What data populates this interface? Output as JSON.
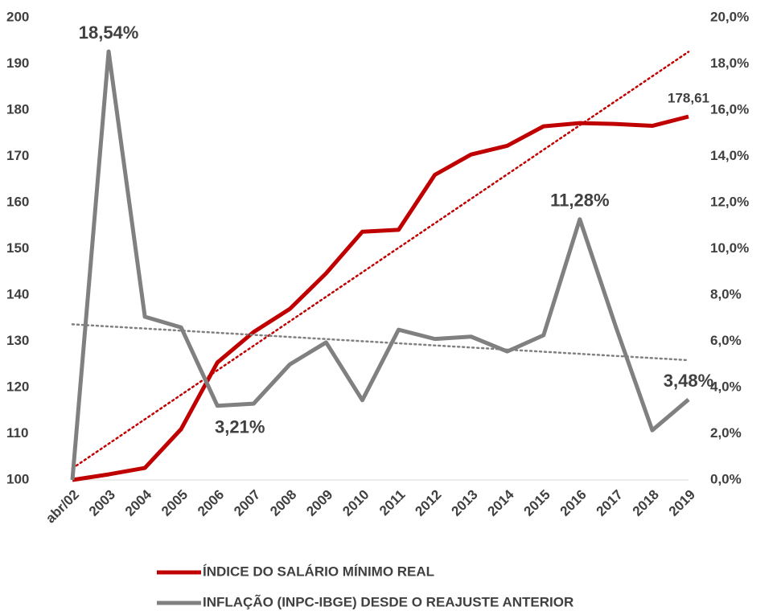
{
  "chart_data": {
    "type": "line",
    "categories": [
      "abr/02",
      "2003",
      "2004",
      "2005",
      "2006",
      "2007",
      "2008",
      "2009",
      "2010",
      "2011",
      "2012",
      "2013",
      "2014",
      "2015",
      "2016",
      "2017",
      "2018",
      "2019"
    ],
    "series": [
      {
        "name": "ÍNDICE DO SALÁRIO MÍNIMO REAL",
        "color": "#c00000",
        "trendline": true,
        "values": [
          100,
          101.2,
          102.6,
          111,
          125.4,
          132,
          137,
          144.7,
          153.7,
          154.1,
          166,
          170.4,
          172.3,
          176.5,
          177.2,
          177,
          176.6,
          178.61
        ],
        "value_labels": [
          null,
          null,
          null,
          null,
          null,
          null,
          null,
          null,
          null,
          null,
          null,
          null,
          null,
          null,
          null,
          null,
          null,
          "178,61"
        ]
      },
      {
        "name": "INFLAÇÃO (INPC-IBGE) DESDE O REAJUSTE ANTERIOR",
        "color": "#808080",
        "axis": "y2",
        "trendline": true,
        "values": [
          0,
          18.54,
          7.06,
          6.6,
          3.21,
          3.3,
          5.0,
          5.95,
          3.45,
          6.5,
          6.1,
          6.2,
          5.56,
          6.26,
          11.28,
          6.6,
          2.15,
          3.48
        ],
        "value_labels": [
          null,
          "18,54%",
          null,
          null,
          "3,21%",
          null,
          null,
          null,
          null,
          null,
          null,
          null,
          null,
          null,
          "11,28%",
          null,
          null,
          "3,48%"
        ]
      }
    ],
    "ylim": [
      100,
      200
    ],
    "yticks": [
      100,
      110,
      120,
      130,
      140,
      150,
      160,
      170,
      180,
      190,
      200
    ],
    "y2lim": [
      0,
      20
    ],
    "y2ticks": [
      {
        "value": 0,
        "label": "0,0%"
      },
      {
        "value": 2,
        "label": "2,0%"
      },
      {
        "value": 4,
        "label": "4,0%"
      },
      {
        "value": 6,
        "label": "6,0%"
      },
      {
        "value": 8,
        "label": "8,0%"
      },
      {
        "value": 10,
        "label": "10,0%"
      },
      {
        "value": 12,
        "label": "12,0%"
      },
      {
        "value": 14,
        "label": "14,0%"
      },
      {
        "value": 16,
        "label": "16,0%"
      },
      {
        "value": 18,
        "label": "18,0%"
      },
      {
        "value": 20,
        "label": "20,0%"
      }
    ],
    "legend": "bottom",
    "grid": false
  }
}
